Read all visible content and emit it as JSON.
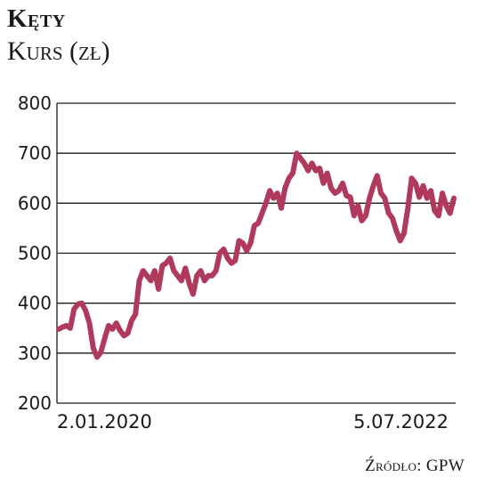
{
  "title": "Kęty",
  "subtitle": "Kurs (zł)",
  "source": "Źródło: GPW",
  "colors": {
    "line": "#b03a5b",
    "grid": "#1a1a1a"
  },
  "chart_data": {
    "type": "line",
    "title": "Kęty",
    "ylabel": "Kurs (zł)",
    "ylim": [
      200,
      800
    ],
    "yticks": [
      200,
      300,
      400,
      500,
      600,
      700,
      800
    ],
    "grid": true,
    "x_start_label": "2.01.2020",
    "x_end_label": "5.07.2022",
    "series": [
      {
        "values": [
          348,
          352,
          355,
          350,
          388,
          398,
          400,
          385,
          360,
          310,
          292,
          302,
          330,
          355,
          348,
          360,
          345,
          335,
          340,
          365,
          378,
          445,
          465,
          455,
          445,
          465,
          428,
          475,
          480,
          490,
          465,
          455,
          445,
          470,
          440,
          418,
          455,
          465,
          445,
          455,
          455,
          465,
          500,
          508,
          490,
          480,
          485,
          525,
          520,
          505,
          520,
          555,
          560,
          580,
          600,
          625,
          610,
          620,
          590,
          630,
          650,
          660,
          700,
          690,
          680,
          665,
          680,
          665,
          670,
          640,
          660,
          630,
          620,
          625,
          640,
          615,
          612,
          575,
          595,
          565,
          575,
          610,
          635,
          655,
          620,
          610,
          580,
          570,
          545,
          525,
          540,
          590,
          650,
          640,
          612,
          635,
          610,
          625,
          585,
          575,
          620,
          595,
          580,
          610
        ]
      }
    ]
  }
}
